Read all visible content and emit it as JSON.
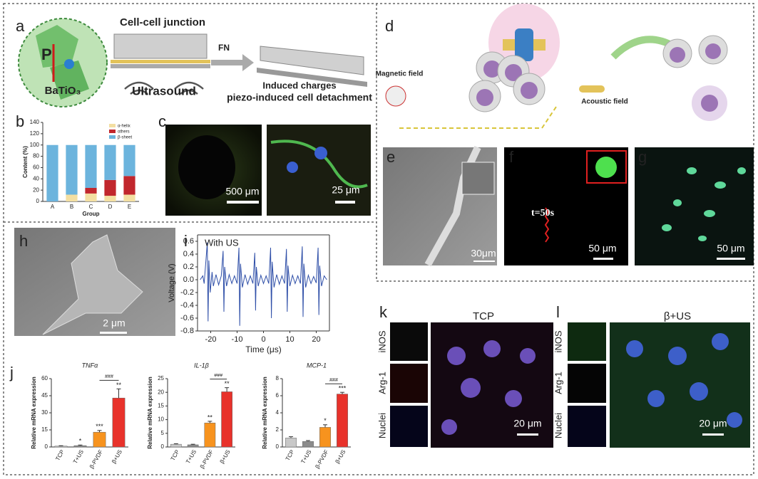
{
  "panel_labels": [
    "a",
    "b",
    "c",
    "d",
    "e",
    "f",
    "g",
    "h",
    "i",
    "j",
    "k",
    "l"
  ],
  "panel_a": {
    "junction": "Cell-cell junction",
    "fn": "FN",
    "polarization": "P",
    "material": "BaTiO₃",
    "ultrasound": "Ultrasound",
    "charges": "Induced charges",
    "detachment": "piezo-induced cell detachment"
  },
  "panel_c": {
    "scale_left": "500 μm",
    "scale_right": "25 μm"
  },
  "panel_d": {
    "magnetic": "Magnetic field",
    "acoustic": "Acoustic field"
  },
  "panel_e": {
    "scale": "30μm"
  },
  "panel_f": {
    "time": "t=50s",
    "scale": "50 μm"
  },
  "panel_g": {
    "scale": "50 μm"
  },
  "panel_h": {
    "scale": "2 μm"
  },
  "panel_k": {
    "title": "TCP",
    "stains": [
      "iNOS",
      "Arg-1",
      "Nuclei"
    ],
    "scale": "20 μm"
  },
  "panel_l": {
    "title": "β+US",
    "stains": [
      "iNOS",
      "Arg-1",
      "Nuclei"
    ],
    "scale": "20 μm"
  },
  "chart_data": [
    {
      "type": "stacked_bar",
      "categories": [
        "A",
        "B",
        "C",
        "D",
        "E"
      ],
      "series": [
        {
          "name": "α-helix",
          "color": "#f3dfa2",
          "values": [
            0,
            12,
            14,
            10,
            12
          ]
        },
        {
          "name": "others",
          "color": "#c1272d",
          "values": [
            0,
            0,
            10,
            28,
            33
          ]
        },
        {
          "name": "β-sheet",
          "color": "#6cb4dd",
          "values": [
            100,
            88,
            76,
            62,
            55
          ]
        }
      ],
      "ylim": [
        0,
        140
      ],
      "yticks": [
        0,
        20,
        40,
        60,
        80,
        100,
        120,
        140
      ],
      "ylabel": "Content (%)",
      "xlabel": "Group",
      "legend": "upper right"
    },
    {
      "type": "line",
      "annotation": "With US",
      "color": "#2f4fa8",
      "x": [
        -24,
        -23,
        -22.5,
        -21.3,
        -21,
        -20.7,
        -20.2,
        -19.5,
        -19,
        -18,
        -17,
        -16,
        -15.3,
        -15,
        -14.7,
        -14,
        -13,
        -12,
        -11,
        -10,
        -9.3,
        -9,
        -8.7,
        -8,
        -7,
        -6,
        -5,
        -4,
        -3.3,
        -3,
        -2.7,
        -2,
        -1,
        0,
        1,
        2,
        2.7,
        3,
        3.3,
        4,
        5,
        6,
        7,
        8,
        8.7,
        9,
        9.3,
        10,
        11,
        12,
        13,
        14,
        14.7,
        15,
        15.3,
        16,
        17,
        18,
        19,
        20,
        20.7,
        21,
        21.3,
        22,
        23,
        24
      ],
      "values": [
        0,
        0.06,
        -0.06,
        0.58,
        -0.65,
        0.3,
        -0.2,
        0.12,
        -0.1,
        0.08,
        -0.08,
        0.06,
        0.45,
        -0.5,
        0.2,
        -0.1,
        0.08,
        -0.06,
        0.06,
        -0.06,
        0.5,
        -0.72,
        0.25,
        -0.12,
        0.08,
        -0.07,
        0.06,
        -0.06,
        0.42,
        -0.48,
        0.2,
        -0.1,
        0.07,
        -0.06,
        0.06,
        -0.06,
        0.5,
        -0.6,
        0.28,
        -0.12,
        0.08,
        -0.07,
        0.06,
        -0.06,
        0.48,
        -0.5,
        0.22,
        -0.1,
        0.07,
        -0.06,
        0.06,
        -0.06,
        0.52,
        -0.58,
        0.25,
        -0.12,
        0.07,
        -0.06,
        0.05,
        -0.05,
        0.5,
        -0.55,
        0.22,
        -0.1,
        0.06,
        0
      ],
      "xlim": [
        -25,
        25
      ],
      "xticks": [
        -20,
        -10,
        0,
        10,
        20
      ],
      "ylim": [
        -0.8,
        0.7
      ],
      "yticks": [
        -0.8,
        -0.6,
        -0.4,
        -0.2,
        {
          "value": 0,
          "label": "0.0"
        },
        0.2,
        0.4,
        0.6
      ],
      "xlabel": "Time (μs)",
      "ylabel": "Voltage (V)"
    },
    {
      "type": "bar",
      "title": "TNFα",
      "categories": [
        "TCP",
        "T+US",
        "β-PVDF",
        "β+US"
      ],
      "values": [
        0.8,
        1.2,
        13,
        43
      ],
      "errors": [
        0.3,
        0.5,
        1.5,
        8
      ],
      "colors": [
        "#c8c8c8",
        "#8c8c8c",
        "#f7931e",
        "#e8322b"
      ],
      "ylim": [
        0,
        60
      ],
      "yticks": [
        0,
        15,
        30,
        45,
        60
      ],
      "ylabel": "Relative mRNA expression",
      "value_annotations": [
        null,
        "*",
        "***",
        "**"
      ],
      "comparison": {
        "label": "###",
        "between": [
          "β-PVDF",
          "β+US"
        ]
      }
    },
    {
      "type": "bar",
      "title": "IL-1β",
      "categories": [
        "TCP",
        "T+US",
        "β-PVDF",
        "β+US"
      ],
      "values": [
        1,
        0.8,
        8.8,
        20.2
      ],
      "errors": [
        0.2,
        0.2,
        0.6,
        1.5
      ],
      "colors": [
        "#c8c8c8",
        "#8c8c8c",
        "#f7931e",
        "#e8322b"
      ],
      "ylim": [
        0,
        25
      ],
      "yticks": [
        0,
        5,
        10,
        15,
        20,
        25
      ],
      "ylabel": "Relative mRNA expression",
      "value_annotations": [
        null,
        null,
        "**",
        "**"
      ],
      "comparison": {
        "label": "###",
        "between": [
          "β-PVDF",
          "β+US"
        ]
      }
    },
    {
      "type": "bar",
      "title": "MCP-1",
      "categories": [
        "TCP",
        "T+US",
        "β-PVDF",
        "β+US"
      ],
      "values": [
        1.05,
        0.65,
        2.3,
        6.2
      ],
      "errors": [
        0.15,
        0.1,
        0.3,
        0.2
      ],
      "colors": [
        "#c8c8c8",
        "#8c8c8c",
        "#f7931e",
        "#e8322b"
      ],
      "ylim": [
        0,
        8
      ],
      "yticks": [
        0,
        2,
        4,
        6,
        8
      ],
      "ylabel": "Relative mRNA expression",
      "value_annotations": [
        null,
        null,
        "*",
        "***"
      ],
      "comparison": {
        "label": "###",
        "between": [
          "β-PVDF",
          "β+US"
        ]
      }
    }
  ]
}
